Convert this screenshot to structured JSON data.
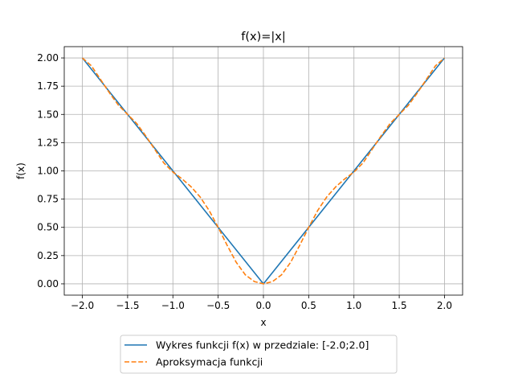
{
  "chart_data": {
    "type": "line",
    "title": "f(x)=|x|",
    "xlabel": "x",
    "ylabel": "f(x)",
    "xlim": [
      -2.2,
      2.2
    ],
    "ylim": [
      -0.1,
      2.1
    ],
    "xticks": [
      -2.0,
      -1.5,
      -1.0,
      -0.5,
      0.0,
      0.5,
      1.0,
      1.5,
      2.0
    ],
    "xtick_labels": [
      "−2.0",
      "−1.5",
      "−1.0",
      "−0.5",
      "0.0",
      "0.5",
      "1.0",
      "1.5",
      "2.0"
    ],
    "yticks": [
      0.0,
      0.25,
      0.5,
      0.75,
      1.0,
      1.25,
      1.5,
      1.75,
      2.0
    ],
    "ytick_labels": [
      "0.00",
      "0.25",
      "0.50",
      "0.75",
      "1.00",
      "1.25",
      "1.50",
      "1.75",
      "2.00"
    ],
    "grid": true,
    "legend_position": "below",
    "series": [
      {
        "name": "Wykres funkcji f(x) w przedziale: [-2.0;2.0]",
        "color": "#1f77b4",
        "style": "solid",
        "x": [
          -2.0,
          0.0,
          2.0
        ],
        "y": [
          2.0,
          0.0,
          2.0
        ]
      },
      {
        "name": "Aproksymacja funkcji",
        "color": "#ff7f0e",
        "style": "dashed",
        "x": [
          -2.0,
          -1.9,
          -1.8,
          -1.7,
          -1.6,
          -1.5,
          -1.4,
          -1.3,
          -1.2,
          -1.1,
          -1.0,
          -0.9,
          -0.8,
          -0.7,
          -0.6,
          -0.5,
          -0.4,
          -0.3,
          -0.2,
          -0.1,
          0.0,
          0.1,
          0.2,
          0.3,
          0.4,
          0.5,
          0.6,
          0.7,
          0.8,
          0.9,
          1.0,
          1.1,
          1.2,
          1.3,
          1.4,
          1.5,
          1.6,
          1.7,
          1.8,
          1.9,
          2.0
        ],
        "y": [
          2.0,
          1.93,
          1.81,
          1.69,
          1.58,
          1.5,
          1.42,
          1.31,
          1.19,
          1.07,
          0.99,
          0.93,
          0.86,
          0.77,
          0.65,
          0.5,
          0.34,
          0.19,
          0.08,
          0.02,
          0.0,
          0.02,
          0.08,
          0.19,
          0.34,
          0.5,
          0.65,
          0.77,
          0.86,
          0.93,
          0.99,
          1.07,
          1.19,
          1.31,
          1.42,
          1.5,
          1.58,
          1.69,
          1.81,
          1.93,
          2.0
        ]
      }
    ]
  }
}
